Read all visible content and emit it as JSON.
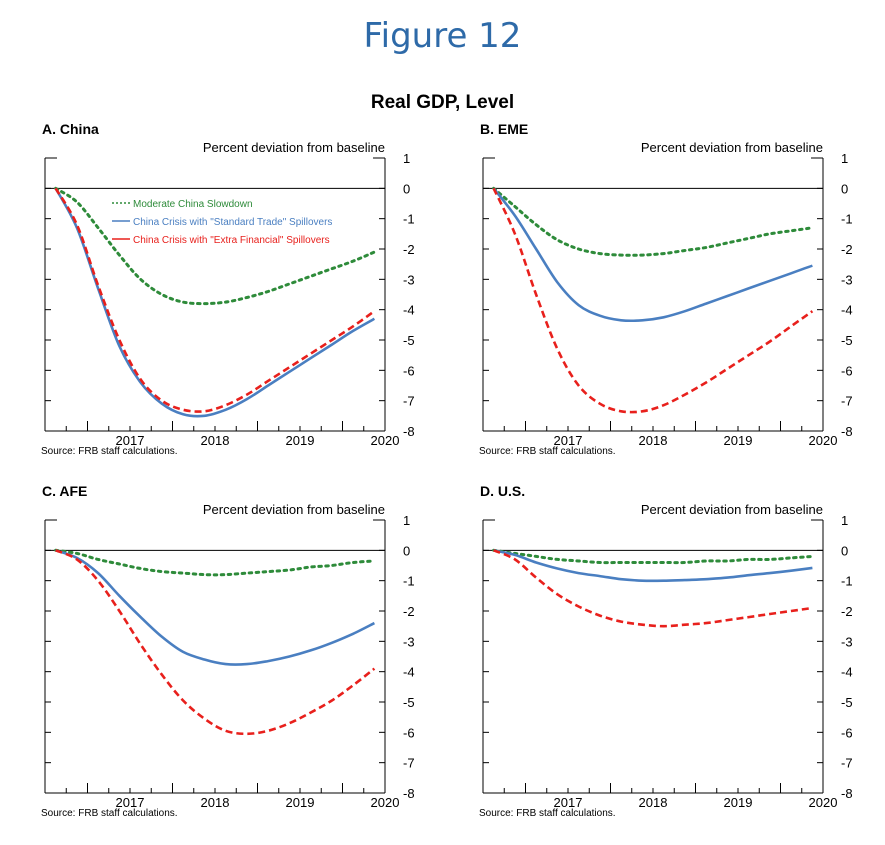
{
  "figure_title": "Figure 12",
  "main_title": "Real GDP, Level",
  "colors": {
    "title": "#2e6aa8",
    "moderate": "#2e8b3a",
    "standard": "#4a7fc1",
    "extra": "#e8201c"
  },
  "legend": [
    {
      "key": "moderate",
      "label": "Moderate China Slowdown"
    },
    {
      "key": "standard",
      "label": "China Crisis with \"Standard Trade\" Spillovers"
    },
    {
      "key": "extra",
      "label": "China Crisis with \"Extra Financial\" Spillovers"
    }
  ],
  "chart_data": [
    {
      "type": "line",
      "title": "A. China",
      "ylabel": "Percent deviation from baseline",
      "source": "Source: FRB staff calculations.",
      "x_ticks": [
        "2017",
        "2018",
        "2019",
        "2020"
      ],
      "xlim": [
        2016.5,
        2020.5
      ],
      "ylim": [
        -8,
        1
      ],
      "y_ticks": [
        1,
        0,
        -1,
        -2,
        -3,
        -4,
        -5,
        -6,
        -7,
        -8
      ],
      "x": [
        2016.625,
        2016.875,
        2017.125,
        2017.375,
        2017.625,
        2017.875,
        2018.125,
        2018.375,
        2018.625,
        2018.875,
        2019.125,
        2019.375,
        2019.625,
        2019.875,
        2020.125,
        2020.375
      ],
      "series": [
        {
          "name": "Moderate China Slowdown",
          "key": "moderate",
          "values": [
            0,
            -0.45,
            -1.3,
            -2.2,
            -3.0,
            -3.5,
            -3.75,
            -3.8,
            -3.75,
            -3.6,
            -3.4,
            -3.15,
            -2.9,
            -2.65,
            -2.4,
            -2.1
          ]
        },
        {
          "name": "China Crisis with \"Standard Trade\" Spillovers",
          "key": "standard",
          "values": [
            0,
            -1.3,
            -3.3,
            -5.2,
            -6.4,
            -7.1,
            -7.45,
            -7.5,
            -7.3,
            -6.95,
            -6.5,
            -6.05,
            -5.6,
            -5.15,
            -4.7,
            -4.3
          ]
        },
        {
          "name": "China Crisis with \"Extra Financial\" Spillovers",
          "key": "extra",
          "values": [
            0,
            -1.2,
            -3.2,
            -5.0,
            -6.3,
            -7.0,
            -7.3,
            -7.35,
            -7.15,
            -6.8,
            -6.35,
            -5.9,
            -5.45,
            -5.0,
            -4.55,
            -4.05
          ]
        }
      ]
    },
    {
      "type": "line",
      "title": "B. EME",
      "ylabel": "Percent deviation from baseline",
      "source": "Source: FRB staff calculations.",
      "x_ticks": [
        "2017",
        "2018",
        "2019",
        "2020"
      ],
      "xlim": [
        2016.5,
        2020.5
      ],
      "ylim": [
        -8,
        1
      ],
      "y_ticks": [
        1,
        0,
        -1,
        -2,
        -3,
        -4,
        -5,
        -6,
        -7,
        -8
      ],
      "x": [
        2016.625,
        2016.875,
        2017.125,
        2017.375,
        2017.625,
        2017.875,
        2018.125,
        2018.375,
        2018.625,
        2018.875,
        2019.125,
        2019.375,
        2019.625,
        2019.875,
        2020.125,
        2020.375
      ],
      "series": [
        {
          "name": "Moderate China Slowdown",
          "key": "moderate",
          "values": [
            0,
            -0.6,
            -1.2,
            -1.7,
            -2.0,
            -2.15,
            -2.2,
            -2.2,
            -2.15,
            -2.05,
            -1.95,
            -1.8,
            -1.65,
            -1.5,
            -1.4,
            -1.3
          ]
        },
        {
          "name": "China Crisis with \"Standard Trade\" Spillovers",
          "key": "standard",
          "values": [
            0,
            -0.9,
            -2.0,
            -3.1,
            -3.85,
            -4.2,
            -4.35,
            -4.35,
            -4.25,
            -4.05,
            -3.8,
            -3.55,
            -3.3,
            -3.05,
            -2.8,
            -2.55
          ]
        },
        {
          "name": "China Crisis with \"Extra Financial\" Spillovers",
          "key": "extra",
          "values": [
            0,
            -1.5,
            -3.5,
            -5.3,
            -6.5,
            -7.1,
            -7.35,
            -7.35,
            -7.15,
            -6.8,
            -6.4,
            -5.95,
            -5.5,
            -5.05,
            -4.55,
            -4.05
          ]
        }
      ]
    },
    {
      "type": "line",
      "title": "C. AFE",
      "ylabel": "Percent deviation from baseline",
      "source": "Source: FRB staff calculations.",
      "x_ticks": [
        "2017",
        "2018",
        "2019",
        "2020"
      ],
      "xlim": [
        2016.5,
        2020.5
      ],
      "ylim": [
        -8,
        1
      ],
      "y_ticks": [
        1,
        0,
        -1,
        -2,
        -3,
        -4,
        -5,
        -6,
        -7,
        -8
      ],
      "x": [
        2016.625,
        2016.875,
        2017.125,
        2017.375,
        2017.625,
        2017.875,
        2018.125,
        2018.375,
        2018.625,
        2018.875,
        2019.125,
        2019.375,
        2019.625,
        2019.875,
        2020.125,
        2020.375
      ],
      "series": [
        {
          "name": "Moderate China Slowdown",
          "key": "moderate",
          "values": [
            0,
            -0.1,
            -0.3,
            -0.45,
            -0.6,
            -0.7,
            -0.75,
            -0.8,
            -0.8,
            -0.75,
            -0.7,
            -0.65,
            -0.55,
            -0.5,
            -0.4,
            -0.35
          ]
        },
        {
          "name": "China Crisis with \"Standard Trade\" Spillovers",
          "key": "standard",
          "values": [
            0,
            -0.25,
            -0.75,
            -1.5,
            -2.2,
            -2.85,
            -3.35,
            -3.6,
            -3.75,
            -3.75,
            -3.65,
            -3.5,
            -3.3,
            -3.05,
            -2.75,
            -2.4
          ]
        },
        {
          "name": "China Crisis with \"Extra Financial\" Spillovers",
          "key": "extra",
          "values": [
            0,
            -0.3,
            -1.0,
            -2.0,
            -3.1,
            -4.1,
            -4.95,
            -5.55,
            -5.95,
            -6.05,
            -5.95,
            -5.7,
            -5.35,
            -4.95,
            -4.45,
            -3.9
          ]
        }
      ]
    },
    {
      "type": "line",
      "title": "D. U.S.",
      "ylabel": "Percent deviation from baseline",
      "source": "Source: FRB staff calculations.",
      "x_ticks": [
        "2017",
        "2018",
        "2019",
        "2020"
      ],
      "xlim": [
        2016.5,
        2020.5
      ],
      "ylim": [
        -8,
        1
      ],
      "y_ticks": [
        1,
        0,
        -1,
        -2,
        -3,
        -4,
        -5,
        -6,
        -7,
        -8
      ],
      "x": [
        2016.625,
        2016.875,
        2017.125,
        2017.375,
        2017.625,
        2017.875,
        2018.125,
        2018.375,
        2018.625,
        2018.875,
        2019.125,
        2019.375,
        2019.625,
        2019.875,
        2020.125,
        2020.375
      ],
      "series": [
        {
          "name": "Moderate China Slowdown",
          "key": "moderate",
          "values": [
            0,
            -0.1,
            -0.2,
            -0.3,
            -0.35,
            -0.4,
            -0.4,
            -0.4,
            -0.4,
            -0.4,
            -0.35,
            -0.35,
            -0.3,
            -0.3,
            -0.25,
            -0.2
          ]
        },
        {
          "name": "China Crisis with \"Standard Trade\" Spillovers",
          "key": "standard",
          "values": [
            0,
            -0.15,
            -0.4,
            -0.6,
            -0.75,
            -0.85,
            -0.95,
            -1.0,
            -1.0,
            -0.98,
            -0.95,
            -0.9,
            -0.82,
            -0.75,
            -0.67,
            -0.58
          ]
        },
        {
          "name": "China Crisis with \"Extra Financial\" Spillovers",
          "key": "extra",
          "values": [
            0,
            -0.3,
            -0.9,
            -1.45,
            -1.85,
            -2.15,
            -2.35,
            -2.45,
            -2.5,
            -2.45,
            -2.4,
            -2.3,
            -2.2,
            -2.1,
            -2.0,
            -1.9
          ]
        }
      ]
    }
  ]
}
